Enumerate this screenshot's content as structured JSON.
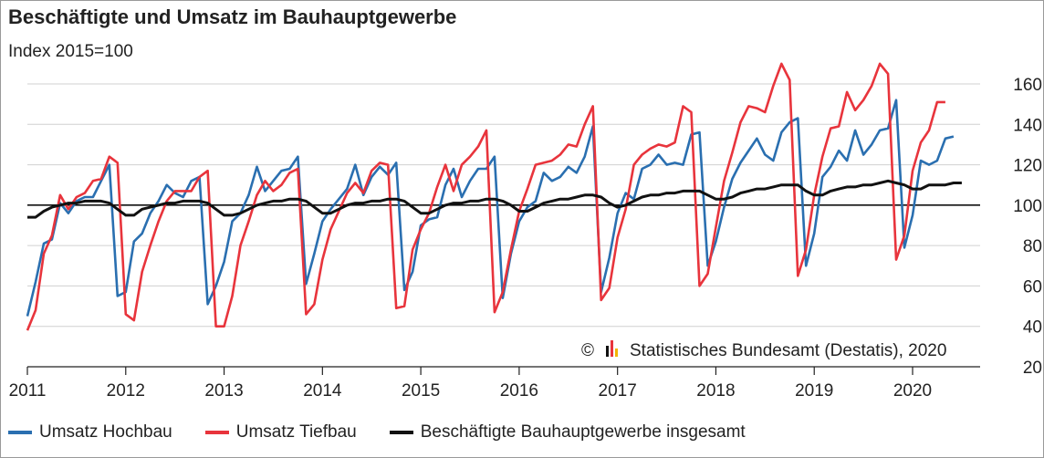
{
  "chart_data": {
    "type": "line",
    "title": "Beschäftigte und Umsatz im Bauhauptgewerbe",
    "ylabel": "Index 2015=100",
    "source": "Statistisches Bundesamt (Destatis), 2020",
    "copyright_symbol": "©",
    "reference_line": 100,
    "ylim": [
      20,
      170
    ],
    "yticks": [
      20,
      40,
      60,
      80,
      100,
      120,
      140,
      160
    ],
    "xlim": [
      2011.0,
      2020.7
    ],
    "xticks": [
      "2011",
      "2012",
      "2013",
      "2014",
      "2015",
      "2016",
      "2017",
      "2018",
      "2019",
      "2020"
    ],
    "grid": true,
    "legend_position": "bottom",
    "series": [
      {
        "name": "Umsatz Hochbau",
        "color": "#2a6fb0",
        "start": "2011-01",
        "values": [
          45,
          62,
          81,
          83,
          101,
          96,
          102,
          104,
          104,
          112,
          120,
          55,
          57,
          82,
          86,
          96,
          102,
          110,
          106,
          104,
          112,
          114,
          51,
          60,
          72,
          92,
          96,
          105,
          119,
          107,
          112,
          117,
          118,
          124,
          61,
          76,
          92,
          98,
          103,
          108,
          120,
          105,
          114,
          119,
          115,
          121,
          58,
          67,
          90,
          93,
          94,
          110,
          118,
          104,
          112,
          118,
          118,
          124,
          54,
          76,
          92,
          99,
          102,
          116,
          112,
          114,
          119,
          116,
          124,
          139,
          57,
          74,
          96,
          106,
          103,
          118,
          120,
          125,
          120,
          121,
          120,
          135,
          136,
          70,
          82,
          99,
          113,
          121,
          127,
          133,
          125,
          122,
          136,
          141,
          143,
          70,
          86,
          114,
          119,
          127,
          122,
          137,
          125,
          130,
          137,
          138,
          152,
          79,
          95,
          122,
          120,
          122,
          133,
          134
        ]
      },
      {
        "name": "Umsatz Tiefbau",
        "color": "#e8343c",
        "start": "2011-01",
        "values": [
          38,
          48,
          76,
          85,
          105,
          98,
          104,
          106,
          112,
          113,
          124,
          121,
          46,
          43,
          67,
          80,
          92,
          102,
          107,
          107,
          107,
          114,
          117,
          40,
          40,
          55,
          80,
          92,
          105,
          112,
          107,
          110,
          116,
          118,
          46,
          51,
          73,
          88,
          97,
          106,
          111,
          106,
          117,
          121,
          120,
          49,
          50,
          78,
          88,
          96,
          109,
          120,
          107,
          120,
          124,
          129,
          137,
          47,
          57,
          78,
          97,
          108,
          120,
          121,
          122,
          125,
          130,
          129,
          140,
          149,
          53,
          59,
          84,
          98,
          120,
          125,
          128,
          130,
          129,
          131,
          149,
          146,
          60,
          66,
          89,
          112,
          126,
          141,
          149,
          148,
          146,
          159,
          170,
          162,
          65,
          78,
          105,
          124,
          138,
          139,
          156,
          147,
          152,
          159,
          170,
          165,
          73,
          85,
          117,
          131,
          137,
          151,
          151
        ]
      },
      {
        "name": "Beschäftigte Bauhauptgewerbe insgesamt",
        "color": "#111111",
        "start": "2011-01",
        "values": [
          94,
          94,
          97,
          99,
          100,
          101,
          101,
          102,
          102,
          102,
          101,
          98,
          95,
          95,
          98,
          99,
          100,
          101,
          101,
          102,
          102,
          102,
          101,
          98,
          95,
          95,
          96,
          98,
          100,
          101,
          102,
          102,
          103,
          103,
          102,
          99,
          96,
          96,
          98,
          100,
          101,
          101,
          102,
          102,
          103,
          103,
          102,
          99,
          96,
          96,
          98,
          100,
          101,
          101,
          102,
          102,
          103,
          103,
          102,
          100,
          97,
          97,
          99,
          101,
          102,
          103,
          103,
          104,
          105,
          105,
          104,
          101,
          99,
          100,
          102,
          104,
          105,
          105,
          106,
          106,
          107,
          107,
          107,
          105,
          103,
          103,
          104,
          106,
          107,
          108,
          108,
          109,
          110,
          110,
          110,
          107,
          105,
          105,
          107,
          108,
          109,
          109,
          110,
          110,
          111,
          112,
          111,
          110,
          108,
          108,
          110,
          110,
          110,
          111,
          111
        ]
      }
    ]
  }
}
